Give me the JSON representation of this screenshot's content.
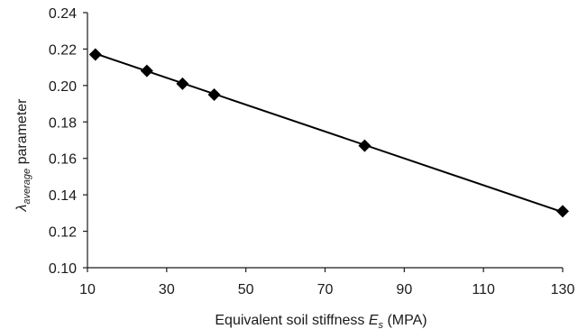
{
  "chart_data": {
    "type": "scatter",
    "title": "",
    "xlabel": {
      "prefix": "Equivalent soil stiffness ",
      "symbol": "E",
      "subscript": "s",
      "suffix": " (MPA)"
    },
    "ylabel": {
      "symbol": "λ",
      "subscript": "average",
      "suffix": " parameter"
    },
    "xlim": [
      10,
      130
    ],
    "ylim": [
      0.1,
      0.24
    ],
    "xticks": [
      "10",
      "30",
      "50",
      "70",
      "90",
      "110",
      "130"
    ],
    "yticks": [
      "0.10",
      "0.12",
      "0.14",
      "0.16",
      "0.18",
      "0.20",
      "0.22",
      "0.24"
    ],
    "grid": false,
    "legend": "none",
    "marker": "diamond",
    "color": "#000000",
    "series": [
      {
        "x": [
          12,
          25,
          34,
          42,
          80,
          130
        ],
        "y": [
          0.217,
          0.208,
          0.201,
          0.195,
          0.167,
          0.131
        ]
      }
    ],
    "trendline": {
      "x": [
        12,
        130
      ],
      "y": [
        0.2175,
        0.1305
      ]
    }
  }
}
